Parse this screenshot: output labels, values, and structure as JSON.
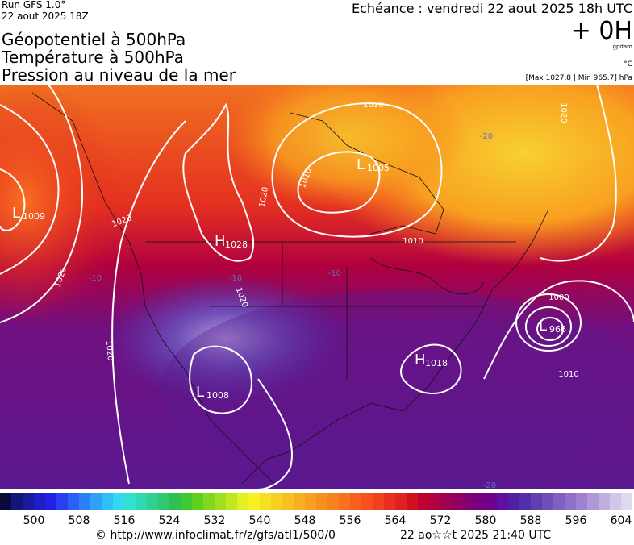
{
  "header": {
    "run": "Run GFS 1.0°",
    "run_date": "22 aout 2025 18Z",
    "echeance": "Echéance : vendredi 22 aout 2025 18h UTC",
    "offset": "+ 0H",
    "unit_geo": "gpdam",
    "unit_temp": "°C",
    "pressure_range": "[Max 1027.8 | Min 965.7] hPa",
    "titles": [
      "Géopotentiel à 500hPa",
      "Température à 500hPa",
      "Pression au niveau de la mer"
    ]
  },
  "centers": [
    {
      "letter": "L",
      "value": 1009
    },
    {
      "letter": "H",
      "value": 1028
    },
    {
      "letter": "L",
      "value": 1005
    },
    {
      "letter": "L",
      "value": 966
    },
    {
      "letter": "H",
      "value": 1018
    },
    {
      "letter": "L",
      "value": 1008
    }
  ],
  "isobar_labels": [
    1020,
    1020,
    1020,
    1020,
    1010,
    1010,
    1020,
    1020,
    1000,
    1010,
    1020
  ],
  "temperature_labels": [
    -20,
    -10,
    -10,
    -10,
    -20
  ],
  "colorbar": {
    "ticks": [
      500,
      508,
      516,
      524,
      532,
      540,
      548,
      556,
      564,
      572,
      580,
      588,
      596,
      604
    ],
    "colors": [
      "#0a0a3a",
      "#14147a",
      "#1a1aa0",
      "#1e1ec8",
      "#2020e6",
      "#2a40f0",
      "#2a60f5",
      "#2a80f8",
      "#30a0f8",
      "#30c0f8",
      "#30d8f0",
      "#30e0d0",
      "#30d8b0",
      "#30d090",
      "#30c870",
      "#30c050",
      "#40c830",
      "#60d020",
      "#80d820",
      "#a0e020",
      "#c0e820",
      "#e0f020",
      "#f8f020",
      "#f8e020",
      "#f8d020",
      "#f8c020",
      "#f8b020",
      "#f8a020",
      "#f89020",
      "#f88020",
      "#f87020",
      "#f86020",
      "#f85020",
      "#f04020",
      "#e83020",
      "#e02020",
      "#d01020",
      "#c00030",
      "#b00040",
      "#a00050",
      "#900060",
      "#800070",
      "#780080",
      "#700090",
      "#6010a0",
      "#5020a0",
      "#5030a8",
      "#6040b0",
      "#7050b8",
      "#8060c0",
      "#9070c8",
      "#a080d0",
      "#b098d8",
      "#c0b0e0",
      "#d0c8e8",
      "#e0d8f0"
    ]
  },
  "footer": {
    "source": "© http://www.infoclimat.fr/z/gfs/atl1/500/0",
    "generated": "22 ao☆☆t 2025 21:40 UTC"
  }
}
